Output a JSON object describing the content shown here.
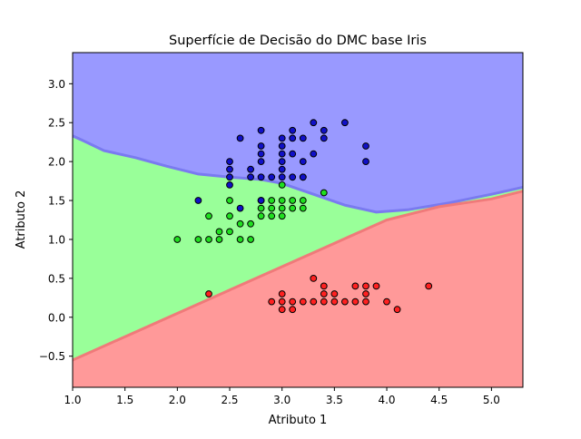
{
  "chart_data": {
    "type": "scatter",
    "title": "Superfície de Decisão do DMC base Iris",
    "xlabel": "Atributo 1",
    "ylabel": "Atributo 2",
    "xlim": [
      1.0,
      5.3
    ],
    "ylim": [
      -0.9,
      3.4
    ],
    "x_ticks": [
      1.0,
      1.5,
      2.0,
      2.5,
      3.0,
      3.5,
      4.0,
      4.5,
      5.0
    ],
    "y_ticks": [
      -0.5,
      0.0,
      0.5,
      1.0,
      1.5,
      2.0,
      2.5,
      3.0
    ],
    "x_tick_labels": [
      "1.0",
      "1.5",
      "2.0",
      "2.5",
      "3.0",
      "3.5",
      "4.0",
      "4.5",
      "5.0"
    ],
    "y_tick_labels": [
      "−0.5",
      "0.0",
      "0.5",
      "1.0",
      "1.5",
      "2.0",
      "2.5",
      "3.0"
    ],
    "grid": false,
    "legend": "none",
    "region_colors": {
      "red": "#ff9999",
      "green": "#99ff99",
      "blue": "#9999ff"
    },
    "point_colors": {
      "red": "#ff2020",
      "green": "#20e020",
      "blue": "#1010c8"
    },
    "decision_boundaries": {
      "blue_green": [
        [
          1.0,
          2.33
        ],
        [
          1.1,
          2.27
        ],
        [
          1.3,
          2.14
        ],
        [
          1.6,
          2.05
        ],
        [
          1.9,
          1.94
        ],
        [
          2.2,
          1.84
        ],
        [
          2.5,
          1.8
        ],
        [
          2.8,
          1.77
        ],
        [
          3.0,
          1.72
        ],
        [
          3.3,
          1.58
        ],
        [
          3.6,
          1.44
        ],
        [
          3.9,
          1.35
        ],
        [
          4.2,
          1.38
        ],
        [
          4.6,
          1.47
        ],
        [
          5.0,
          1.58
        ],
        [
          5.3,
          1.67
        ]
      ],
      "green_red": [
        [
          1.0,
          -0.55
        ],
        [
          1.5,
          -0.25
        ],
        [
          2.0,
          0.05
        ],
        [
          2.5,
          0.35
        ],
        [
          3.0,
          0.65
        ],
        [
          3.5,
          0.95
        ],
        [
          4.0,
          1.25
        ],
        [
          4.5,
          1.42
        ],
        [
          5.0,
          1.52
        ],
        [
          5.3,
          1.62
        ]
      ]
    },
    "series": [
      {
        "class": "red",
        "points": [
          [
            2.3,
            0.3
          ],
          [
            2.9,
            0.2
          ],
          [
            3.0,
            0.1
          ],
          [
            3.0,
            0.2
          ],
          [
            3.0,
            0.3
          ],
          [
            3.1,
            0.1
          ],
          [
            3.1,
            0.2
          ],
          [
            3.2,
            0.2
          ],
          [
            3.3,
            0.2
          ],
          [
            3.3,
            0.5
          ],
          [
            3.4,
            0.2
          ],
          [
            3.4,
            0.3
          ],
          [
            3.4,
            0.4
          ],
          [
            3.5,
            0.2
          ],
          [
            3.5,
            0.3
          ],
          [
            3.6,
            0.2
          ],
          [
            3.7,
            0.2
          ],
          [
            3.7,
            0.4
          ],
          [
            3.8,
            0.2
          ],
          [
            3.8,
            0.3
          ],
          [
            3.8,
            0.4
          ],
          [
            3.9,
            0.4
          ],
          [
            4.0,
            0.2
          ],
          [
            4.1,
            0.1
          ],
          [
            4.4,
            0.4
          ]
        ]
      },
      {
        "class": "green",
        "points": [
          [
            2.0,
            1.0
          ],
          [
            2.2,
            1.0
          ],
          [
            2.3,
            1.0
          ],
          [
            2.3,
            1.3
          ],
          [
            2.4,
            1.0
          ],
          [
            2.4,
            1.1
          ],
          [
            2.5,
            1.1
          ],
          [
            2.5,
            1.3
          ],
          [
            2.5,
            1.5
          ],
          [
            2.6,
            1.0
          ],
          [
            2.6,
            1.2
          ],
          [
            2.7,
            1.0
          ],
          [
            2.7,
            1.2
          ],
          [
            2.8,
            1.3
          ],
          [
            2.8,
            1.4
          ],
          [
            2.8,
            1.5
          ],
          [
            2.9,
            1.3
          ],
          [
            2.9,
            1.4
          ],
          [
            2.9,
            1.5
          ],
          [
            3.0,
            1.3
          ],
          [
            3.0,
            1.4
          ],
          [
            3.0,
            1.5
          ],
          [
            3.0,
            1.7
          ],
          [
            3.1,
            1.4
          ],
          [
            3.1,
            1.5
          ],
          [
            3.2,
            1.4
          ],
          [
            3.2,
            1.5
          ],
          [
            3.2,
            1.8
          ],
          [
            3.4,
            1.6
          ]
        ]
      },
      {
        "class": "blue",
        "points": [
          [
            2.2,
            1.5
          ],
          [
            2.5,
            1.7
          ],
          [
            2.5,
            1.8
          ],
          [
            2.5,
            1.9
          ],
          [
            2.5,
            2.0
          ],
          [
            2.6,
            1.4
          ],
          [
            2.6,
            2.3
          ],
          [
            2.7,
            1.8
          ],
          [
            2.7,
            1.9
          ],
          [
            2.8,
            1.5
          ],
          [
            2.8,
            1.8
          ],
          [
            2.8,
            2.0
          ],
          [
            2.8,
            2.1
          ],
          [
            2.8,
            2.2
          ],
          [
            2.8,
            2.4
          ],
          [
            2.9,
            1.8
          ],
          [
            3.0,
            1.8
          ],
          [
            3.0,
            1.9
          ],
          [
            3.0,
            2.0
          ],
          [
            3.0,
            2.1
          ],
          [
            3.0,
            2.2
          ],
          [
            3.0,
            2.3
          ],
          [
            3.1,
            1.8
          ],
          [
            3.1,
            2.1
          ],
          [
            3.1,
            2.3
          ],
          [
            3.1,
            2.4
          ],
          [
            3.2,
            1.8
          ],
          [
            3.2,
            2.0
          ],
          [
            3.2,
            2.3
          ],
          [
            3.3,
            2.1
          ],
          [
            3.3,
            2.5
          ],
          [
            3.4,
            2.3
          ],
          [
            3.4,
            2.4
          ],
          [
            3.6,
            2.5
          ],
          [
            3.8,
            2.0
          ],
          [
            3.8,
            2.2
          ]
        ]
      }
    ]
  }
}
